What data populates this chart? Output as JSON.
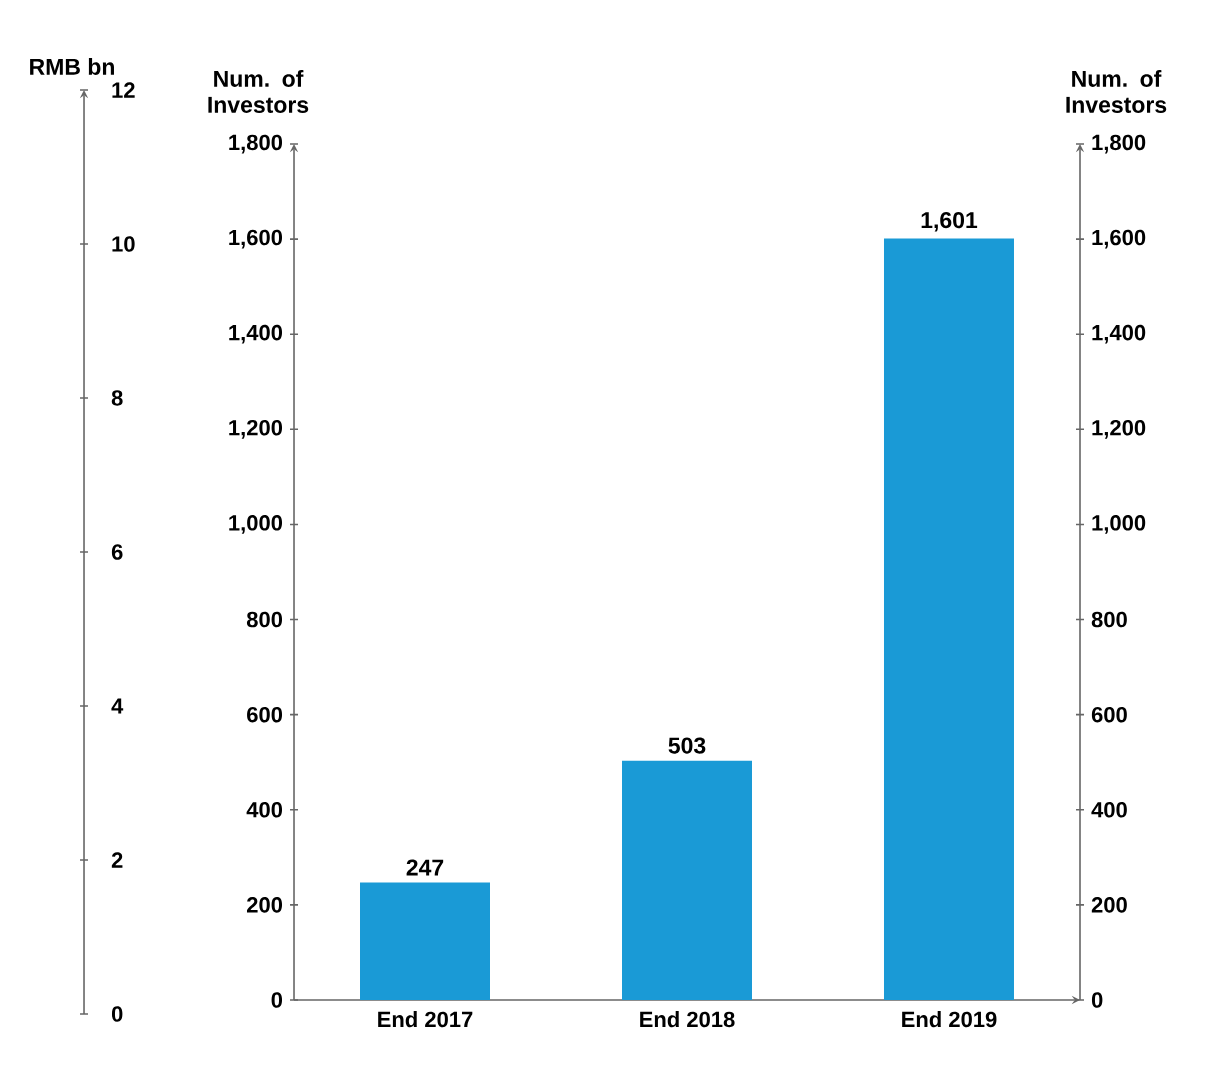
{
  "chart_data": {
    "type": "bar",
    "categories": [
      "End 2017",
      "End 2018",
      "End 2019"
    ],
    "values": [
      247,
      503,
      1601
    ],
    "value_labels": [
      "247",
      "503",
      "1,601"
    ],
    "color": "#1a9ad6",
    "ylabel": "Num. of Investors",
    "ylim": [
      0,
      1800
    ],
    "yticks": [
      0,
      200,
      400,
      600,
      800,
      {
        "value": 1000,
        "label": "1,000"
      },
      {
        "value": 1200,
        "label": "1,200"
      },
      {
        "value": 1400,
        "label": "1,400"
      },
      {
        "value": 1600,
        "label": "1,600"
      },
      {
        "value": 1800,
        "label": "1,800"
      }
    ],
    "y2label": "Num. of Investors",
    "y2lim": [
      0,
      1800
    ],
    "y2ticks": [
      0,
      200,
      400,
      600,
      800,
      {
        "value": 1000,
        "label": "1,000"
      },
      {
        "value": 1200,
        "label": "1,200"
      },
      {
        "value": 1400,
        "label": "1,400"
      },
      {
        "value": 1600,
        "label": "1,600"
      },
      {
        "value": 1800,
        "label": "1,800"
      }
    ],
    "y3label": "RMB bn",
    "y3lim": [
      0,
      12
    ],
    "y3ticks": [
      0,
      2,
      4,
      6,
      8,
      10,
      12
    ]
  }
}
